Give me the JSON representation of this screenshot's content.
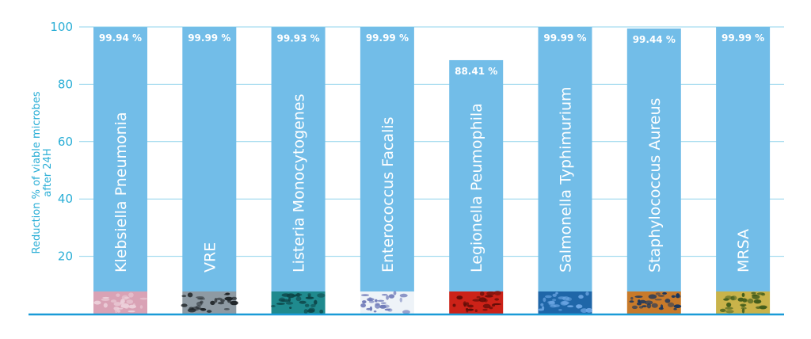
{
  "chart_data": {
    "type": "bar",
    "categories": [
      "Klebsiella Pneumonia",
      "VRE",
      "Listeria Monocytogenes",
      "Enterococcus Facalis",
      "Legionella Peumophila",
      "Salmonella Typhimurium",
      "Staphylococcus Aureus",
      "MRSA"
    ],
    "values": [
      99.94,
      99.99,
      99.93,
      99.99,
      88.41,
      99.99,
      99.44,
      99.99
    ],
    "value_labels": [
      "99.94 %",
      "99.99 %",
      "99.93 %",
      "99.99 %",
      "88.41 %",
      "99.99 %",
      "99.44 %",
      "99.99 %"
    ],
    "title": "",
    "xlabel": "",
    "ylabel": "Reduction % of viable microbes",
    "ylabel_line2": "after 24H",
    "yticks": [
      20,
      40,
      60,
      80,
      100
    ],
    "ylim": [
      0,
      100
    ],
    "grid": true,
    "legend": "none",
    "colors": {
      "bar": "#72bde8",
      "grid": "#8fd3ec",
      "axis": "#1a9bd7",
      "text": "#2aaed6",
      "label_text": "#ffffff"
    },
    "microbe_image_colors": [
      [
        "#d9a2b5",
        "#ecd0da"
      ],
      [
        "#8e9aa3",
        "#1e2327"
      ],
      [
        "#1f8a8e",
        "#0d4346"
      ],
      [
        "#eef3f8",
        "#6f7ab8"
      ],
      [
        "#cc2218",
        "#5e0d08"
      ],
      [
        "#1f66a8",
        "#6fa9e6"
      ],
      [
        "#c87a2a",
        "#18355e"
      ],
      [
        "#c9b34a",
        "#3e5a1a"
      ]
    ]
  }
}
